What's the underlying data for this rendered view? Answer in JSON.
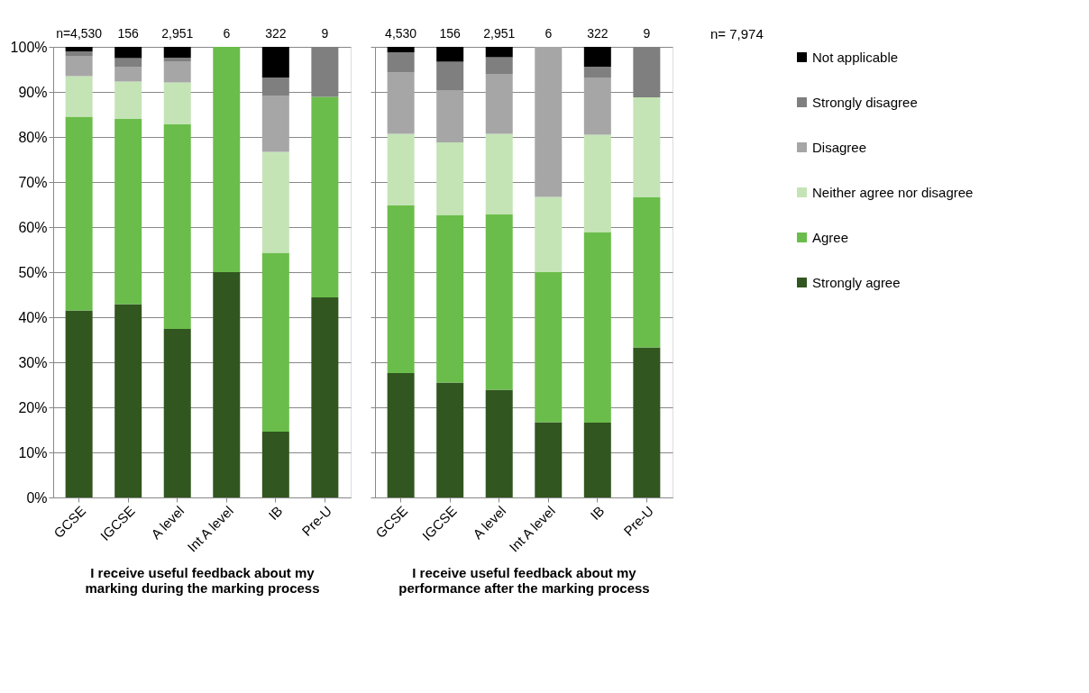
{
  "chart_data": [
    {
      "type": "bar",
      "stacked": true,
      "categories": [
        "GCSE",
        "IGCSE",
        "A level",
        "Int A level",
        "IB",
        "Pre-U"
      ],
      "series": [
        {
          "name": "Strongly agree",
          "color": "#31561f",
          "values": [
            41.5,
            42.9,
            37.4,
            50,
            14.6,
            44.4
          ]
        },
        {
          "name": "Agree",
          "color": "#6abd4a",
          "values": [
            43,
            41.1,
            45.4,
            50,
            39.7,
            44.5
          ]
        },
        {
          "name": "Neither agree nor disagree",
          "color": "#c4e4b5",
          "values": [
            9,
            8.3,
            9.3,
            0,
            22.4,
            0
          ]
        },
        {
          "name": "Disagree",
          "color": "#a6a6a6",
          "values": [
            4.5,
            3.3,
            4.7,
            0,
            12.4,
            0
          ]
        },
        {
          "name": "Strongly disagree",
          "color": "#7f7f7f",
          "values": [
            1,
            1.9,
            0.8,
            0,
            4.1,
            11.1
          ]
        },
        {
          "name": "Not applicable",
          "color": "#000000",
          "values": [
            1,
            2.5,
            2.4,
            0,
            6.8,
            0
          ]
        }
      ],
      "ylim": [
        0,
        100
      ],
      "yticks": [
        {
          "value": 0,
          "label": "0%"
        },
        {
          "value": 10,
          "label": "10%"
        },
        {
          "value": 20,
          "label": "20%"
        },
        {
          "value": 30,
          "label": "30%"
        },
        {
          "value": 40,
          "label": "40%"
        },
        {
          "value": 50,
          "label": "50%"
        },
        {
          "value": 60,
          "label": "60%"
        },
        {
          "value": 70,
          "label": "70%"
        },
        {
          "value": 80,
          "label": "80%"
        },
        {
          "value": 90,
          "label": "90%"
        },
        {
          "value": 100,
          "label": "100%"
        }
      ],
      "grid": "y",
      "legend": "right",
      "xlabel": "I receive useful feedback about my marking during the marking process",
      "annotations": [
        {
          "text": "n=4,530",
          "x": "GCSE",
          "y": 100
        },
        {
          "text": "156",
          "x": "IGCSE",
          "y": 100
        },
        {
          "text": "2,951",
          "x": "A level",
          "y": 100
        },
        {
          "text": "6",
          "x": "Int A level",
          "y": 100
        },
        {
          "text": "322",
          "x": "IB",
          "y": 100
        },
        {
          "text": "9",
          "x": "Pre-U",
          "y": 100
        }
      ]
    },
    {
      "type": "bar",
      "stacked": true,
      "categories": [
        "GCSE",
        "IGCSE",
        "A level",
        "Int A level",
        "IB",
        "Pre-U"
      ],
      "series": [
        {
          "name": "Strongly agree",
          "color": "#31561f",
          "values": [
            27.6,
            25.5,
            23.9,
            16.7,
            16.6,
            33.3
          ]
        },
        {
          "name": "Agree",
          "color": "#6abd4a",
          "values": [
            37.2,
            37.2,
            38.9,
            33.3,
            42.3,
            33.3
          ]
        },
        {
          "name": "Neither agree nor disagree",
          "color": "#c4e4b5",
          "values": [
            15.9,
            16.1,
            17.9,
            16.7,
            21.6,
            22.2
          ]
        },
        {
          "name": "Disagree",
          "color": "#a6a6a6",
          "values": [
            13.6,
            11.6,
            13.3,
            33.3,
            12.7,
            0
          ]
        },
        {
          "name": "Strongly disagree",
          "color": "#7f7f7f",
          "values": [
            4.5,
            6.3,
            3.7,
            0,
            2.4,
            11.1
          ]
        },
        {
          "name": "Not applicable",
          "color": "#000000",
          "values": [
            1.2,
            3.3,
            2.3,
            0,
            4.4,
            0
          ]
        }
      ],
      "ylim": [
        0,
        100
      ],
      "yticks": [
        0,
        10,
        20,
        30,
        40,
        50,
        60,
        70,
        80,
        90,
        100
      ],
      "grid": "y",
      "legend": "right",
      "tick_labels": "x",
      "xlabel": "I receive useful feedback about my performance after the marking process",
      "annotations": [
        {
          "text": "4,530",
          "x": "GCSE",
          "y": 100
        },
        {
          "text": "156",
          "x": "IGCSE",
          "y": 100
        },
        {
          "text": "2,951",
          "x": "A level",
          "y": 100
        },
        {
          "text": "6",
          "x": "Int A level",
          "y": 100
        },
        {
          "text": "322",
          "x": "IB",
          "y": 100
        },
        {
          "text": "9",
          "x": "Pre-U",
          "y": 100
        },
        "n= 7,974"
      ]
    }
  ]
}
